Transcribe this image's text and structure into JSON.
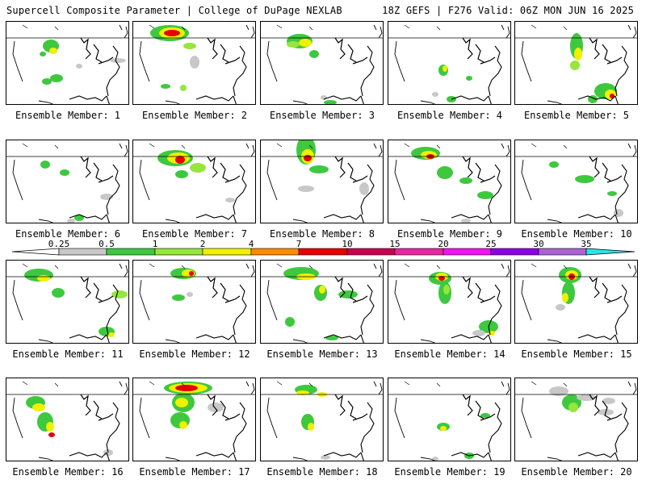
{
  "header": {
    "left_title": "Supercell Composite Parameter | College of DuPage NEXLAB",
    "right_title": "18Z GEFS | F276 Valid: 06Z MON JUN 16 2025"
  },
  "legend": {
    "ticks": [
      "0.25",
      "0.5",
      "1",
      "2",
      "4",
      "7",
      "10",
      "15",
      "20",
      "25",
      "30",
      "35"
    ],
    "colors": [
      "#c8c8c8",
      "#3ec83e",
      "#96e63c",
      "#f0f000",
      "#ff8c00",
      "#e60000",
      "#c80050",
      "#e628a0",
      "#f014f0",
      "#8c00e6",
      "#aa64d2",
      "#28e6e6"
    ]
  },
  "panels": [
    {
      "label": "Ensemble Member: 1"
    },
    {
      "label": "Ensemble Member: 2"
    },
    {
      "label": "Ensemble Member: 3"
    },
    {
      "label": "Ensemble Member: 4"
    },
    {
      "label": "Ensemble Member: 5"
    },
    {
      "label": "Ensemble Member: 6"
    },
    {
      "label": "Ensemble Member: 7"
    },
    {
      "label": "Ensemble Member: 8"
    },
    {
      "label": "Ensemble Member: 9"
    },
    {
      "label": "Ensemble Member: 10"
    },
    {
      "label": "Ensemble Member: 11"
    },
    {
      "label": "Ensemble Member: 12"
    },
    {
      "label": "Ensemble Member: 13"
    },
    {
      "label": "Ensemble Member: 14"
    },
    {
      "label": "Ensemble Member: 15"
    },
    {
      "label": "Ensemble Member: 16"
    },
    {
      "label": "Ensemble Member: 17"
    },
    {
      "label": "Ensemble Member: 18"
    },
    {
      "label": "Ensemble Member: 19"
    },
    {
      "label": "Ensemble Member: 20"
    }
  ]
}
